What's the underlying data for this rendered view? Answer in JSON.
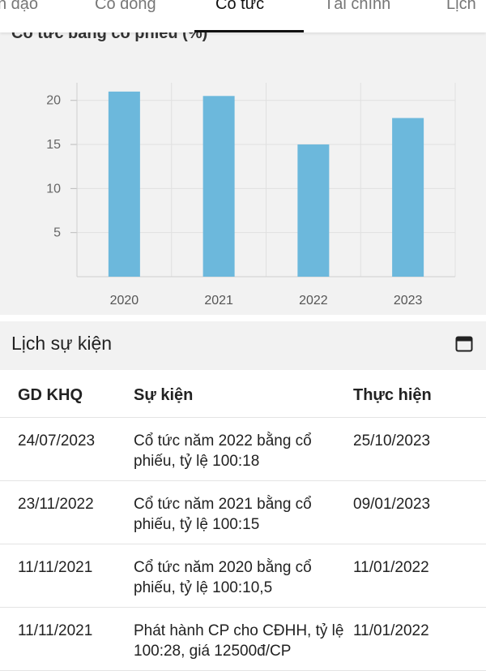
{
  "tabs": [
    {
      "label": "n đạo",
      "active": false
    },
    {
      "label": "Cổ đông",
      "active": false
    },
    {
      "label": "Cổ tức",
      "active": true
    },
    {
      "label": "Tài chính",
      "active": false
    },
    {
      "label": "Lịch",
      "active": false
    }
  ],
  "chart_title": "Cổ tức bằng cổ phiếu (%)",
  "chart_data": {
    "type": "bar",
    "title": "Cổ tức bằng cổ phiếu (%)",
    "categories": [
      "2020",
      "2021",
      "2022",
      "2023"
    ],
    "values": [
      21,
      20.5,
      15,
      18
    ],
    "yticks": [
      "20",
      "15",
      "10",
      "5"
    ],
    "ylim": [
      0,
      22
    ],
    "grid": true,
    "color": "#6cb8dc"
  },
  "events": {
    "title": "Lịch sự kiện",
    "icon": "calendar-icon",
    "columns": [
      "GD KHQ",
      "Sự kiện",
      "Thực hiện"
    ],
    "rows": [
      {
        "date": "24/07/2023",
        "event": "Cổ tức năm 2022 bằng cổ phiếu, tỷ lệ 100:18",
        "done": "25/10/2023"
      },
      {
        "date": "23/11/2022",
        "event": "Cổ tức năm 2021 bằng cổ phiếu, tỷ lệ 100:15",
        "done": "09/01/2023"
      },
      {
        "date": "11/11/2021",
        "event": "Cổ tức năm 2020 bằng cổ phiếu, tỷ lệ 100:10,5",
        "done": "11/01/2022"
      },
      {
        "date": "11/11/2021",
        "event": "Phát hành CP cho CĐHH, tỷ lệ 100:28, giá 12500đ/CP",
        "done": "11/01/2022"
      }
    ]
  }
}
